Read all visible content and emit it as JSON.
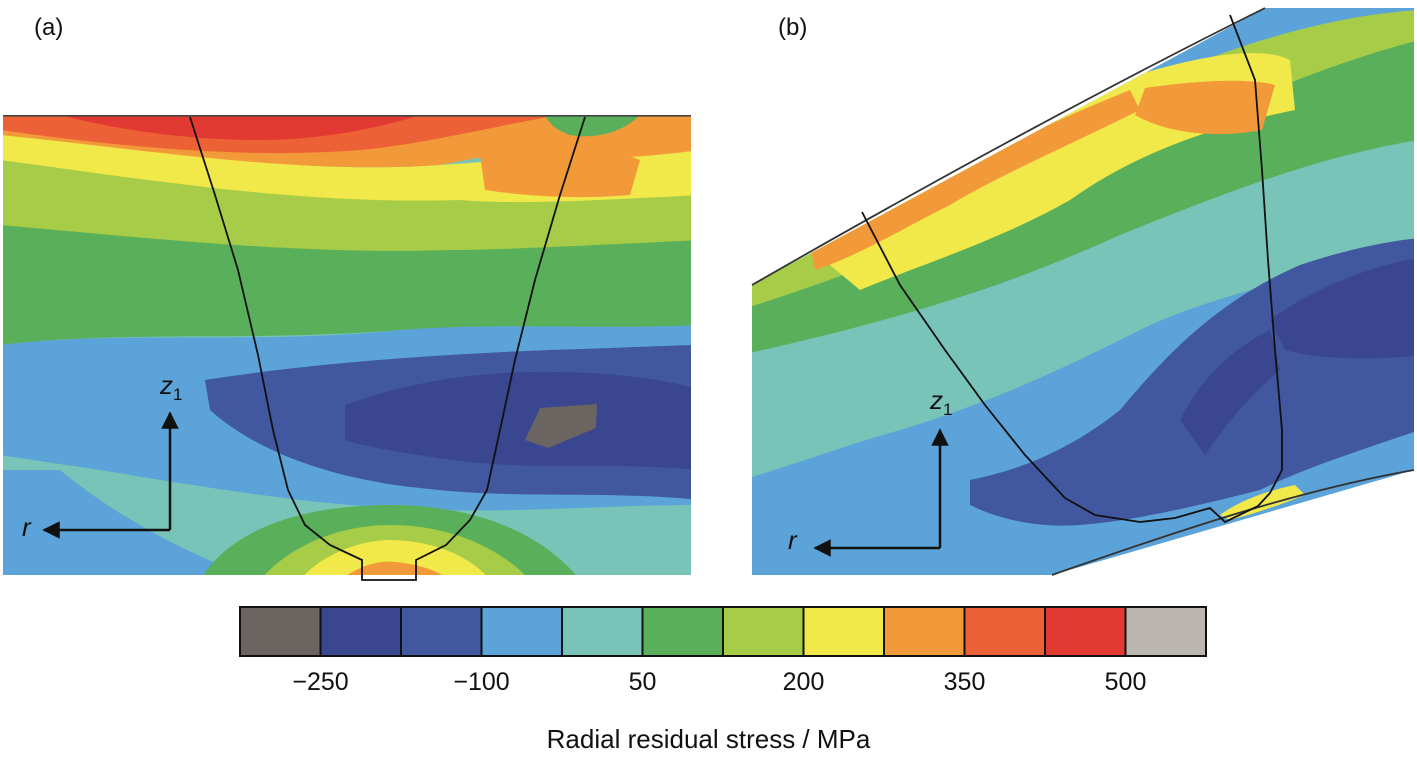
{
  "panels": [
    {
      "label": "(a)",
      "axis_vertical": "z",
      "axis_vertical_sub": "1",
      "axis_horizontal": "r"
    },
    {
      "label": "(b)",
      "axis_vertical": "z",
      "axis_vertical_sub": "1",
      "axis_horizontal": "r"
    }
  ],
  "colorbar": {
    "title": "Radial residual stress / MPa",
    "colors": [
      "#6b6460",
      "#3a4690",
      "#4158a0",
      "#5ba3d8",
      "#79c4b8",
      "#5aaf5a",
      "#a7cc48",
      "#f1e84a",
      "#f29a3a",
      "#ec6136",
      "#e23a32",
      "#bcb6b1"
    ],
    "ticks": [
      "−250",
      "−100",
      "50",
      "200",
      "350",
      "500"
    ]
  },
  "stress_palette": {
    "red": "#e23a32",
    "orange_red": "#ec6136",
    "orange": "#f29a3a",
    "yellow": "#f1e84a",
    "yellow_green": "#a7cc48",
    "green": "#5aaf5a",
    "teal": "#79c4b8",
    "light_blue": "#5ba3d8",
    "blue": "#4158a0",
    "dark_blue": "#3a4690",
    "gray": "#6b6460"
  }
}
